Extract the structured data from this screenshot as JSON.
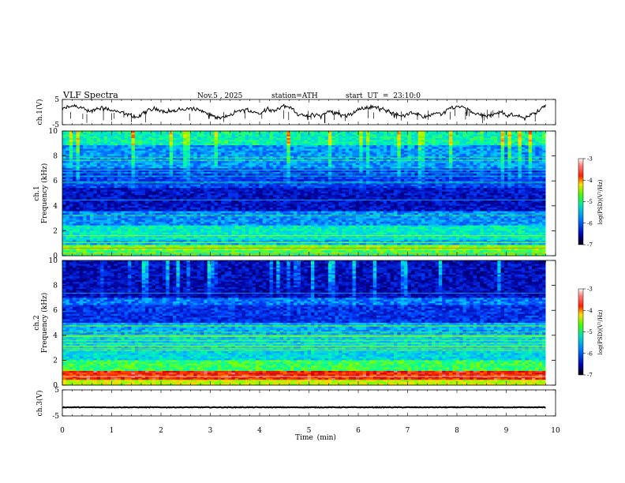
{
  "header": {
    "title": "VLF Spectra",
    "date": "Nov.5 , 2025",
    "station": "station=ATH",
    "start_ut": "start UT = 23:10:0"
  },
  "chart_data": [
    {
      "type": "line",
      "name": "ch1-waveform",
      "ylabel": "ch.1(V)",
      "ylim": [
        -5,
        5
      ],
      "yticks": [
        "5",
        "-5"
      ],
      "xlim": [
        0,
        10
      ],
      "x_end": 9.8,
      "baseline": 0,
      "description_values": "Noisy waveform fluctuating roughly between -3 V and +3 V"
    },
    {
      "type": "heatmap",
      "name": "ch1-spectrogram",
      "ylabel": "Frequency (kHz)",
      "channel_label": "ch.1",
      "ylim": [
        0,
        10
      ],
      "yticks": [
        "0",
        "2",
        "4",
        "6",
        "8",
        "10"
      ],
      "xlim": [
        0,
        10
      ],
      "x_end": 9.8,
      "colorbar": {
        "label": "log(PSD)(V²/Hz)",
        "range": [
          -7,
          -3
        ],
        "ticks": [
          "-3",
          "-4",
          "-5",
          "-6",
          "-7"
        ]
      },
      "bands_khz": [
        {
          "f0": 0.0,
          "f1": 0.5,
          "level": 0.55
        },
        {
          "f0": 0.5,
          "f1": 0.8,
          "level": 0.62
        },
        {
          "f0": 0.8,
          "f1": 1.3,
          "level": 0.38
        },
        {
          "f0": 1.3,
          "f1": 2.4,
          "level": 0.46
        },
        {
          "f0": 2.4,
          "f1": 3.6,
          "level": 0.33
        },
        {
          "f0": 3.6,
          "f1": 5.4,
          "level": 0.16
        },
        {
          "f0": 5.4,
          "f1": 7.0,
          "level": 0.24
        },
        {
          "f0": 7.0,
          "f1": 8.8,
          "level": 0.34
        },
        {
          "f0": 8.8,
          "f1": 10.0,
          "level": 0.48
        }
      ]
    },
    {
      "type": "heatmap",
      "name": "ch2-spectrogram",
      "ylabel": "Frequency (kHz)",
      "channel_label": "ch.2",
      "ylim": [
        0,
        10
      ],
      "yticks": [
        "0",
        "2",
        "4",
        "6",
        "8",
        "10"
      ],
      "xlim": [
        0,
        10
      ],
      "x_end": 9.8,
      "colorbar": {
        "label": "log(PSD)(V²/Hz)",
        "range": [
          -7,
          -3
        ],
        "ticks": [
          "-3",
          "-4",
          "-5",
          "-6",
          "-7"
        ]
      },
      "bands_khz": [
        {
          "f0": 0.0,
          "f1": 0.5,
          "level": 0.68
        },
        {
          "f0": 0.5,
          "f1": 1.1,
          "level": 0.9
        },
        {
          "f0": 1.1,
          "f1": 2.0,
          "level": 0.55
        },
        {
          "f0": 2.0,
          "f1": 4.0,
          "level": 0.42
        },
        {
          "f0": 4.0,
          "f1": 5.0,
          "level": 0.36
        },
        {
          "f0": 5.0,
          "f1": 6.5,
          "level": 0.22
        },
        {
          "f0": 6.5,
          "f1": 7.0,
          "level": 0.3
        },
        {
          "f0": 7.0,
          "f1": 10.0,
          "level": 0.15
        }
      ]
    },
    {
      "type": "line",
      "name": "ch3-waveform",
      "ylabel": "ch.3(V)",
      "ylim": [
        -5,
        5
      ],
      "yticks": [
        "5",
        "-5"
      ],
      "xlim": [
        0,
        10
      ],
      "x_end": 9.8,
      "baseline": -1.7,
      "description_values": "Nearly constant trace at about -1.7 V"
    }
  ],
  "xaxis": {
    "label": "Time (min)",
    "ticks": [
      "0",
      "1",
      "2",
      "3",
      "4",
      "5",
      "6",
      "7",
      "8",
      "9",
      "10"
    ]
  },
  "colors": {
    "colormap": [
      "#000040",
      "#0000a0",
      "#0040ff",
      "#00c0ff",
      "#00ffa0",
      "#80ff00",
      "#ffe000",
      "#ff4000",
      "#cc0000",
      "#ffffff"
    ]
  }
}
